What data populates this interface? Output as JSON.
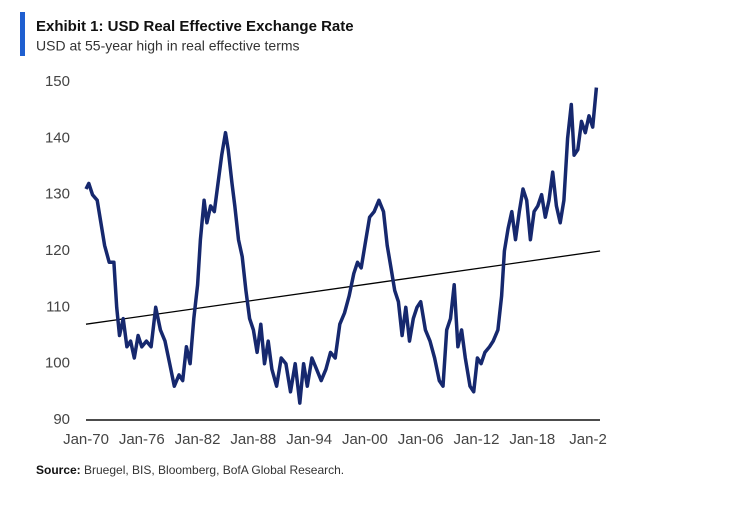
{
  "chart_data": {
    "type": "line",
    "title": "Exhibit 1: USD Real Effective Exchange Rate",
    "subtitle": "USD at 55-year high in real effective terms",
    "source_label": "Source:",
    "source": "Bruegel, BIS, Bloomberg, BofA Global Research.",
    "color": "#16286e",
    "x": [
      1970.0,
      1970.3,
      1970.7,
      1971.2,
      1971.6,
      1972.0,
      1972.5,
      1973.0,
      1973.3,
      1973.6,
      1974.0,
      1974.4,
      1974.8,
      1975.2,
      1975.6,
      1976.0,
      1976.5,
      1977.0,
      1977.5,
      1978.0,
      1978.5,
      1979.0,
      1979.5,
      1980.0,
      1980.4,
      1980.8,
      1981.2,
      1981.6,
      1982.0,
      1982.3,
      1982.7,
      1983.0,
      1983.4,
      1983.8,
      1984.2,
      1984.6,
      1985.0,
      1985.3,
      1985.7,
      1986.0,
      1986.4,
      1986.8,
      1987.2,
      1987.6,
      1988.0,
      1988.4,
      1988.8,
      1989.2,
      1989.6,
      1990.0,
      1990.5,
      1991.0,
      1991.5,
      1992.0,
      1992.5,
      1993.0,
      1993.4,
      1993.8,
      1994.3,
      1994.8,
      1995.3,
      1995.8,
      1996.3,
      1996.8,
      1997.3,
      1997.8,
      1998.3,
      1998.8,
      1999.2,
      1999.6,
      2000.0,
      2000.5,
      2001.0,
      2001.5,
      2002.0,
      2002.4,
      2002.8,
      2003.2,
      2003.6,
      2004.0,
      2004.4,
      2004.8,
      2005.2,
      2005.6,
      2006.0,
      2006.5,
      2007.0,
      2007.5,
      2008.0,
      2008.4,
      2008.8,
      2009.2,
      2009.6,
      2010.0,
      2010.4,
      2010.8,
      2011.3,
      2011.7,
      2012.1,
      2012.5,
      2012.9,
      2013.4,
      2013.8,
      2014.3,
      2014.7,
      2015.0,
      2015.4,
      2015.8,
      2016.2,
      2016.6,
      2017.0,
      2017.4,
      2017.8,
      2018.2,
      2018.6,
      2019.0,
      2019.4,
      2019.8,
      2020.2,
      2020.6,
      2021.0,
      2021.4,
      2021.8,
      2022.2,
      2022.5,
      2022.9,
      2023.3,
      2023.7,
      2024.1,
      2024.5,
      2024.9
    ],
    "values": [
      131,
      132,
      130,
      129,
      125,
      121,
      118,
      118,
      110,
      105,
      108,
      103,
      104,
      101,
      105,
      103,
      104,
      103,
      110,
      106,
      104,
      100,
      96,
      98,
      97,
      103,
      100,
      108,
      114,
      122,
      129,
      125,
      128,
      127,
      132,
      137,
      141,
      138,
      132,
      128,
      122,
      119,
      113,
      108,
      106,
      102,
      107,
      100,
      104,
      99,
      96,
      101,
      100,
      95,
      100,
      93,
      100,
      96,
      101,
      99,
      97,
      99,
      102,
      101,
      107,
      109,
      112,
      116,
      118,
      117,
      121,
      126,
      127,
      129,
      127,
      121,
      117,
      113,
      111,
      105,
      110,
      104,
      108,
      110,
      111,
      106,
      104,
      101,
      97,
      96,
      106,
      108,
      114,
      103,
      106,
      101,
      96,
      95,
      101,
      100,
      102,
      103,
      104,
      106,
      112,
      120,
      124,
      127,
      122,
      127,
      131,
      129,
      122,
      127,
      128,
      130,
      126,
      129,
      134,
      128,
      125,
      129,
      140,
      146,
      137,
      138,
      143,
      141,
      144,
      142,
      149
    ],
    "trend": {
      "x": [
        1970.0,
        2025.3
      ],
      "values": [
        107,
        120
      ],
      "color": "#000000"
    },
    "xlim": [
      1970,
      2025.5
    ],
    "xticks": [
      {
        "value": 1970,
        "label": "Jan-70"
      },
      {
        "value": 1976,
        "label": "Jan-76"
      },
      {
        "value": 1982,
        "label": "Jan-82"
      },
      {
        "value": 1988,
        "label": "Jan-88"
      },
      {
        "value": 1994,
        "label": "Jan-94"
      },
      {
        "value": 2000,
        "label": "Jan-00"
      },
      {
        "value": 2006,
        "label": "Jan-06"
      },
      {
        "value": 2012,
        "label": "Jan-12"
      },
      {
        "value": 2018,
        "label": "Jan-18"
      },
      {
        "value": 2024,
        "label": "Jan-2"
      }
    ],
    "ylim": [
      90,
      150
    ],
    "yticks": [
      90,
      100,
      110,
      120,
      130,
      140,
      150
    ],
    "grid": false
  }
}
